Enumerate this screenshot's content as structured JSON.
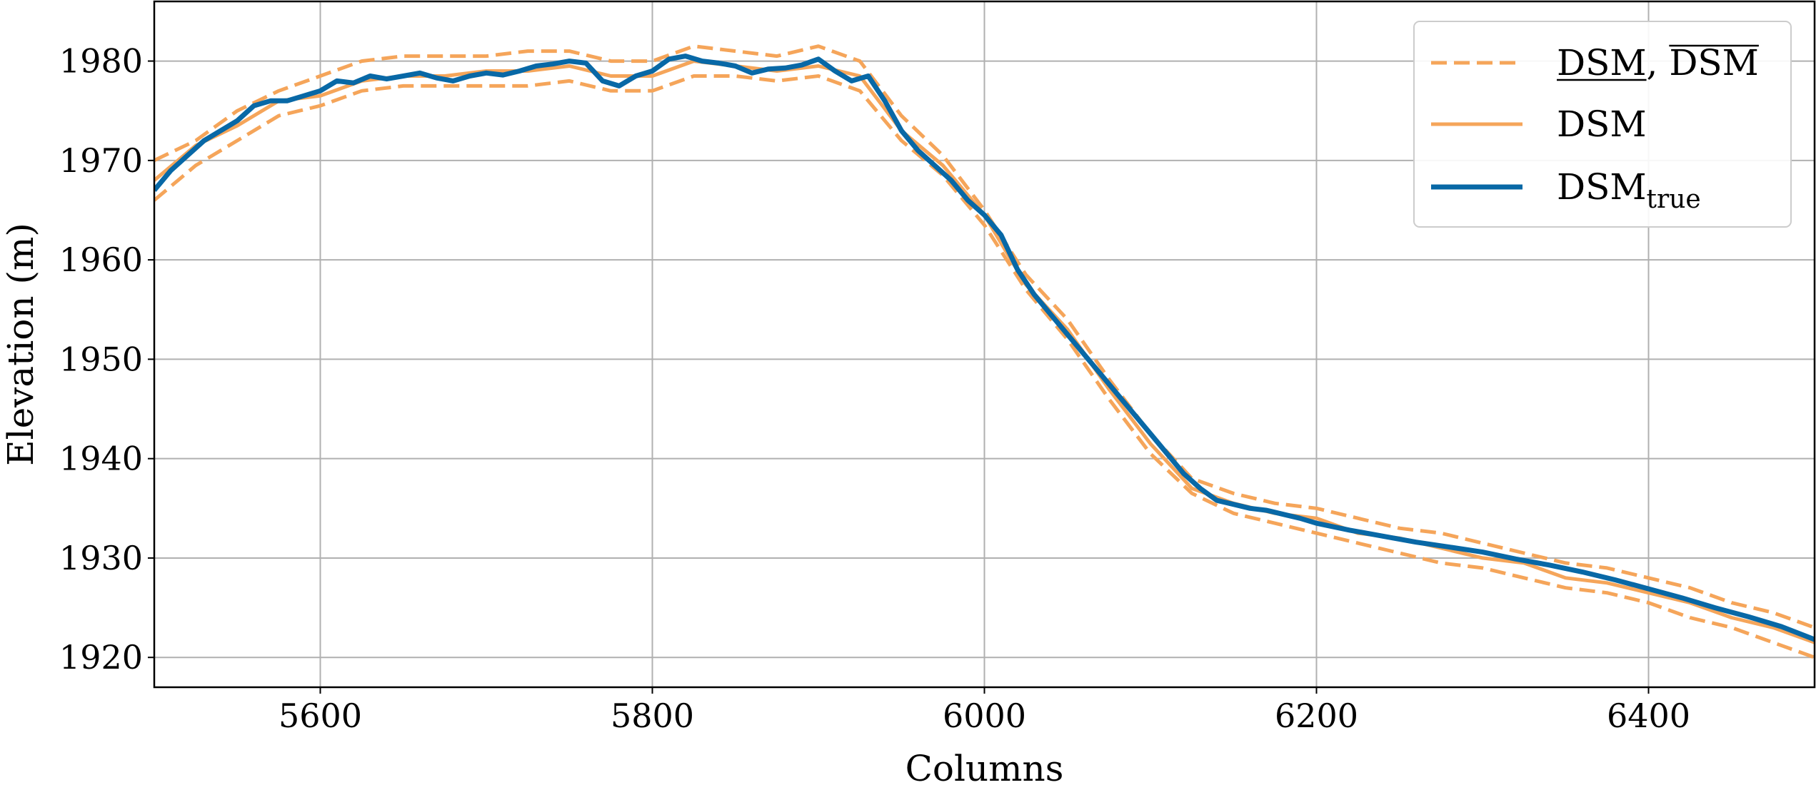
{
  "chart_data": {
    "type": "line",
    "xlabel": "Columns",
    "ylabel": "Elevation (m)",
    "xlim": [
      5500,
      6500
    ],
    "ylim": [
      1917,
      1986
    ],
    "xticks": [
      5600,
      5800,
      6000,
      6200,
      6400
    ],
    "yticks": [
      1920,
      1930,
      1940,
      1950,
      1960,
      1970,
      1980
    ],
    "grid": true,
    "legend_position": "top-right",
    "legend": [
      {
        "main": "DSM",
        "sep": ",",
        "main2": "DSM",
        "sub": "",
        "style": "dashed",
        "color": "#f5a55a",
        "decor": "under-over"
      },
      {
        "main": "DSM",
        "sub": "",
        "style": "solid",
        "color": "#f5a55a",
        "decor": "none"
      },
      {
        "main": "DSM",
        "sub": "true",
        "style": "solid-thick",
        "color": "#0868a6",
        "decor": "none"
      }
    ],
    "series": [
      {
        "role": "lower",
        "style": "dashed",
        "color": "#f5a55a",
        "x": [
          5500,
          5525,
          5550,
          5575,
          5600,
          5625,
          5650,
          5675,
          5700,
          5725,
          5750,
          5775,
          5800,
          5825,
          5850,
          5875,
          5900,
          5925,
          5950,
          5975,
          6000,
          6025,
          6050,
          6075,
          6100,
          6125,
          6150,
          6175,
          6200,
          6225,
          6250,
          6275,
          6300,
          6325,
          6350,
          6375,
          6400,
          6425,
          6450,
          6475,
          6500
        ],
        "y": [
          1966,
          1969.5,
          1972,
          1974.5,
          1975.5,
          1977,
          1977.5,
          1977.5,
          1977.5,
          1977.5,
          1978,
          1977,
          1977,
          1978.5,
          1978.5,
          1978,
          1978.5,
          1977,
          1972,
          1968.5,
          1963.5,
          1957,
          1952,
          1946,
          1940.5,
          1936.5,
          1934.5,
          1933.5,
          1932.5,
          1931.5,
          1930.5,
          1929.5,
          1929,
          1928,
          1927,
          1926.5,
          1925.5,
          1924,
          1923,
          1921.5,
          1920
        ]
      },
      {
        "role": "upper",
        "style": "dashed",
        "color": "#f5a55a",
        "x": [
          5500,
          5525,
          5550,
          5575,
          5600,
          5625,
          5650,
          5675,
          5700,
          5725,
          5750,
          5775,
          5800,
          5825,
          5850,
          5875,
          5900,
          5925,
          5950,
          5975,
          6000,
          6025,
          6050,
          6075,
          6100,
          6125,
          6150,
          6175,
          6200,
          6225,
          6250,
          6275,
          6300,
          6325,
          6350,
          6375,
          6400,
          6425,
          6450,
          6475,
          6500
        ],
        "y": [
          1970,
          1972,
          1975,
          1977,
          1978.5,
          1980,
          1980.5,
          1980.5,
          1980.5,
          1981,
          1981,
          1980,
          1980,
          1981.5,
          1981,
          1980.5,
          1981.5,
          1980,
          1974.5,
          1970.5,
          1965,
          1958.5,
          1954,
          1948,
          1942.5,
          1938,
          1936.5,
          1935.5,
          1935,
          1934,
          1933,
          1932.5,
          1931.5,
          1930.5,
          1929.5,
          1929,
          1928,
          1927,
          1925.5,
          1924.5,
          1923
        ]
      },
      {
        "role": "dsm",
        "style": "solid",
        "color": "#f5a55a",
        "x": [
          5500,
          5525,
          5550,
          5575,
          5600,
          5625,
          5650,
          5675,
          5700,
          5725,
          5750,
          5775,
          5800,
          5825,
          5850,
          5875,
          5900,
          5925,
          5950,
          5975,
          6000,
          6025,
          6050,
          6075,
          6100,
          6125,
          6150,
          6175,
          6200,
          6225,
          6250,
          6275,
          6300,
          6325,
          6350,
          6375,
          6400,
          6425,
          6450,
          6475,
          6500
        ],
        "y": [
          1968,
          1971.5,
          1973.5,
          1976,
          1976.5,
          1978,
          1978.5,
          1978.5,
          1979,
          1979,
          1979.5,
          1978.5,
          1978.5,
          1980,
          1979.5,
          1979,
          1979.5,
          1978.5,
          1973,
          1969.5,
          1964.5,
          1957.5,
          1953,
          1947,
          1941.5,
          1937,
          1935.5,
          1934.5,
          1934,
          1932.5,
          1932,
          1931,
          1930,
          1929.5,
          1928,
          1927.5,
          1926.5,
          1925.5,
          1924,
          1923,
          1921.5
        ]
      },
      {
        "role": "true",
        "style": "solid-thick",
        "color": "#0868a6",
        "x": [
          5500,
          5510,
          5520,
          5530,
          5540,
          5550,
          5560,
          5570,
          5580,
          5590,
          5600,
          5610,
          5620,
          5630,
          5640,
          5650,
          5660,
          5670,
          5680,
          5690,
          5700,
          5710,
          5720,
          5730,
          5740,
          5750,
          5760,
          5770,
          5780,
          5790,
          5800,
          5810,
          5820,
          5830,
          5840,
          5850,
          5860,
          5870,
          5880,
          5890,
          5900,
          5910,
          5920,
          5930,
          5940,
          5950,
          5960,
          5970,
          5980,
          5990,
          6000,
          6010,
          6020,
          6030,
          6040,
          6050,
          6060,
          6070,
          6080,
          6090,
          6100,
          6110,
          6120,
          6130,
          6140,
          6150,
          6160,
          6170,
          6180,
          6190,
          6200,
          6220,
          6240,
          6260,
          6280,
          6300,
          6320,
          6340,
          6360,
          6380,
          6400,
          6420,
          6440,
          6460,
          6480,
          6500
        ],
        "y": [
          1967,
          1969,
          1970.5,
          1972,
          1973,
          1974,
          1975.5,
          1976,
          1976,
          1976.5,
          1977,
          1978,
          1977.8,
          1978.5,
          1978.2,
          1978.5,
          1978.8,
          1978.3,
          1978,
          1978.5,
          1978.8,
          1978.6,
          1979,
          1979.5,
          1979.7,
          1980,
          1979.8,
          1978,
          1977.5,
          1978.5,
          1979,
          1980.2,
          1980.5,
          1980,
          1979.8,
          1979.5,
          1978.8,
          1979.2,
          1979.3,
          1979.6,
          1980.2,
          1979,
          1978,
          1978.5,
          1976,
          1973,
          1971,
          1969.5,
          1968,
          1966,
          1964.5,
          1962.5,
          1959,
          1956.5,
          1954.5,
          1952.5,
          1950.5,
          1948.5,
          1946.5,
          1944.5,
          1942.5,
          1940.5,
          1938.5,
          1937,
          1935.8,
          1935.4,
          1935,
          1934.8,
          1934.4,
          1934,
          1933.5,
          1932.8,
          1932.2,
          1931.6,
          1931.1,
          1930.6,
          1929.9,
          1929.3,
          1928.6,
          1927.8,
          1926.9,
          1926,
          1925,
          1924.1,
          1923.1,
          1921.8
        ]
      }
    ]
  }
}
